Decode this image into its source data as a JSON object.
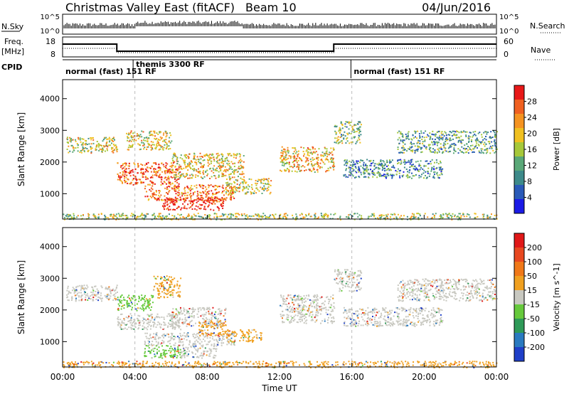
{
  "header": {
    "title": "Christmas Valley East (fitACF)",
    "beam": "Beam 10",
    "date": "04/Jun/2016"
  },
  "nsky_panel": {
    "left_label": "N.Sky",
    "right_label": "N.Search",
    "left_ticks": [
      "10^5",
      "10^0"
    ],
    "right_ticks": [
      "10^5",
      "10^0"
    ]
  },
  "freq_panel": {
    "left_label_1": "Freq.",
    "left_label_2": "[MHz]",
    "left_ticks": [
      "18",
      "8"
    ],
    "right_label": "Nave",
    "right_ticks": [
      "60",
      "0"
    ]
  },
  "cpid_panel": {
    "label": "CPID",
    "segments": [
      {
        "label": "normal (fast) 151 RF",
        "start_hour": 0.0
      },
      {
        "label": "themis 3300 RF",
        "start_hour": 3.9
      },
      {
        "label": "normal (fast) 151 RF",
        "start_hour": 15.95
      }
    ]
  },
  "chart_data": [
    {
      "type": "heatmap",
      "name": "Power",
      "ylabel": "Slant Range [km]",
      "xlabel": "Time UT",
      "x_ticks": [
        "00:00",
        "04:00",
        "08:00",
        "12:00",
        "16:00",
        "20:00",
        "00:00"
      ],
      "xlim_hours": [
        0,
        24
      ],
      "ylim": [
        200,
        4600
      ],
      "y_ticks": [
        "1000",
        "2000",
        "3000",
        "4000"
      ],
      "y_tick_values": [
        1000,
        2000,
        3000,
        4000
      ],
      "colorbar": {
        "label": "Power [dB]",
        "ticks": [
          "4",
          "8",
          "12",
          "16",
          "20",
          "24",
          "28"
        ],
        "colors": [
          "#1a1ae6",
          "#2a5ab8",
          "#3d8a8a",
          "#5aa878",
          "#a6c83a",
          "#f0c020",
          "#f59320",
          "#f06020",
          "#e81818"
        ]
      },
      "scatter_bands": [
        {
          "t0": 0.2,
          "t1": 3.0,
          "r0": 2300,
          "r1": 2800,
          "level": 0.55
        },
        {
          "t0": 3.0,
          "t1": 6.5,
          "r0": 1300,
          "r1": 2000,
          "level": 0.85
        },
        {
          "t0": 3.5,
          "t1": 6.0,
          "r0": 2400,
          "r1": 3000,
          "level": 0.6
        },
        {
          "t0": 4.5,
          "t1": 9.5,
          "r0": 800,
          "r1": 1300,
          "level": 0.8
        },
        {
          "t0": 5.5,
          "t1": 9.0,
          "r0": 500,
          "r1": 900,
          "level": 0.95
        },
        {
          "t0": 6.0,
          "t1": 10.0,
          "r0": 1500,
          "r1": 2300,
          "level": 0.6
        },
        {
          "t0": 9.0,
          "t1": 11.5,
          "r0": 1000,
          "r1": 1500,
          "level": 0.55
        },
        {
          "t0": 12.0,
          "t1": 15.0,
          "r0": 1700,
          "r1": 2500,
          "level": 0.65
        },
        {
          "t0": 15.0,
          "t1": 16.5,
          "r0": 2600,
          "r1": 3300,
          "level": 0.45
        },
        {
          "t0": 15.5,
          "t1": 21.0,
          "r0": 1500,
          "r1": 2100,
          "level": 0.3
        },
        {
          "t0": 18.5,
          "t1": 24.0,
          "r0": 2300,
          "r1": 3000,
          "level": 0.35
        },
        {
          "t0": 0.0,
          "t1": 24.0,
          "r0": 200,
          "r1": 400,
          "level": 0.5
        }
      ]
    },
    {
      "type": "heatmap",
      "name": "Velocity",
      "ylabel": "Slant Range [km]",
      "xlabel": "Time UT",
      "x_ticks": [
        "00:00",
        "04:00",
        "08:00",
        "12:00",
        "16:00",
        "20:00",
        "00:00"
      ],
      "xlim_hours": [
        0,
        24
      ],
      "ylim": [
        200,
        4600
      ],
      "y_ticks": [
        "1000",
        "2000",
        "3000",
        "4000"
      ],
      "y_tick_values": [
        1000,
        2000,
        3000,
        4000
      ],
      "colorbar": {
        "label": "Velocity [m s^-1]",
        "ticks": [
          "200",
          "100",
          "50",
          "15",
          "-15",
          "-50",
          "-100",
          "-200"
        ],
        "colors": [
          "#1f3fc8",
          "#2a7ac0",
          "#2f9a58",
          "#66c93c",
          "#c8c8c0",
          "#f0a020",
          "#f07818",
          "#e84820",
          "#e01818"
        ]
      },
      "scatter_bands": [
        {
          "t0": 0.2,
          "t1": 3.0,
          "r0": 2300,
          "r1": 2800,
          "color": "#c8c8c0"
        },
        {
          "t0": 3.0,
          "t1": 6.5,
          "r0": 1400,
          "r1": 1900,
          "color": "#c8c8c0"
        },
        {
          "t0": 3.0,
          "t1": 5.0,
          "r0": 2000,
          "r1": 2500,
          "color": "#66c93c"
        },
        {
          "t0": 5.0,
          "t1": 6.5,
          "r0": 2400,
          "r1": 3100,
          "color": "#f0a020"
        },
        {
          "t0": 4.5,
          "t1": 9.5,
          "r0": 900,
          "r1": 1300,
          "color": "#c8c8c0"
        },
        {
          "t0": 4.5,
          "t1": 6.5,
          "r0": 500,
          "r1": 900,
          "color": "#66c93c"
        },
        {
          "t0": 6.5,
          "t1": 8.5,
          "r0": 500,
          "r1": 900,
          "color": "#c8c8c0"
        },
        {
          "t0": 6.0,
          "t1": 9.0,
          "r0": 1500,
          "r1": 2100,
          "color": "#c8c8c0"
        },
        {
          "t0": 7.5,
          "t1": 9.0,
          "r0": 1200,
          "r1": 1700,
          "color": "#f0a020"
        },
        {
          "t0": 9.0,
          "t1": 11.0,
          "r0": 1000,
          "r1": 1400,
          "color": "#f0a020"
        },
        {
          "t0": 12.0,
          "t1": 15.0,
          "r0": 1600,
          "r1": 2500,
          "color": "#c8c8c0"
        },
        {
          "t0": 15.0,
          "t1": 16.5,
          "r0": 2600,
          "r1": 3300,
          "color": "#c8c8c0"
        },
        {
          "t0": 15.5,
          "t1": 21.0,
          "r0": 1500,
          "r1": 2100,
          "color": "#c8c8c0"
        },
        {
          "t0": 18.5,
          "t1": 24.0,
          "r0": 2300,
          "r1": 3000,
          "color": "#c8c8c0"
        },
        {
          "t0": 0.0,
          "t1": 24.0,
          "r0": 200,
          "r1": 400,
          "color": "#f0a020"
        }
      ]
    }
  ]
}
